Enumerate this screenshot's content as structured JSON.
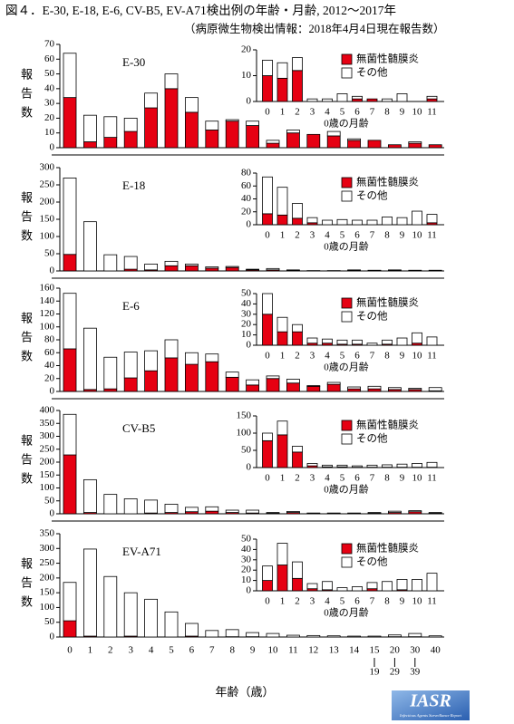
{
  "title": "図４．E-30, E-18, E-6, CV-B5, EV-A71検出例の年齢・月齢, 2012～2017年",
  "subtitle": "（病原微生物検出情報：2018年4月4日現在報告数）",
  "logo": {
    "text": "IASR",
    "caption": "Infectious Agents Surveillance Report"
  },
  "chart_data": [
    {
      "type": "bar",
      "stacked": true,
      "title": "E-30",
      "ylabel": "報告数",
      "ylim": [
        0,
        70
      ],
      "yticks": [
        0,
        10,
        20,
        30,
        40,
        50,
        60,
        70
      ],
      "series": [
        {
          "color": "#e60012",
          "values": [
            34,
            4,
            7,
            11,
            27,
            40,
            24,
            12,
            18,
            15,
            3,
            10,
            9,
            8,
            5,
            5,
            2,
            3,
            2
          ]
        },
        {
          "color": "#ffffff",
          "values": [
            30,
            18,
            14,
            9,
            10,
            10,
            10,
            6,
            1,
            3,
            2,
            2,
            0,
            3,
            1,
            0,
            0,
            1,
            0
          ]
        }
      ],
      "inset": {
        "type": "bar",
        "stacked": true,
        "xlabel": "0歳の月齢",
        "categories": [
          "0",
          "1",
          "2",
          "3",
          "4",
          "5",
          "6",
          "7",
          "8",
          "9",
          "10",
          "11"
        ],
        "ylim": [
          0,
          20
        ],
        "yticks": [
          0,
          10,
          20
        ],
        "legend": "top",
        "series": [
          {
            "name": "無菌性髄膜炎",
            "color": "#e60012",
            "values": [
              10,
              9,
              12,
              0,
              0,
              0,
              1,
              1,
              0,
              0,
              0,
              1
            ]
          },
          {
            "name": "その他",
            "color": "#ffffff",
            "values": [
              6,
              6,
              5,
              1,
              1,
              3,
              1,
              0,
              1,
              3,
              0,
              1
            ]
          }
        ]
      }
    },
    {
      "type": "bar",
      "stacked": true,
      "title": "E-18",
      "ylabel": "報告数",
      "ylim": [
        0,
        300
      ],
      "yticks": [
        0,
        50,
        100,
        150,
        200,
        250,
        300
      ],
      "series": [
        {
          "color": "#e60012",
          "values": [
            48,
            0,
            0,
            5,
            3,
            15,
            15,
            8,
            10,
            3,
            3,
            1,
            0,
            0,
            1,
            1,
            1,
            0,
            0
          ]
        },
        {
          "color": "#ffffff",
          "values": [
            222,
            143,
            47,
            37,
            17,
            13,
            5,
            4,
            3,
            2,
            4,
            2,
            1,
            1,
            2,
            1,
            2,
            2,
            2
          ]
        }
      ],
      "inset": {
        "type": "bar",
        "stacked": true,
        "xlabel": "0歳の月齢",
        "categories": [
          "0",
          "1",
          "2",
          "3",
          "4",
          "5",
          "6",
          "7",
          "8",
          "9",
          "10",
          "11"
        ],
        "ylim": [
          0,
          80
        ],
        "yticks": [
          0,
          20,
          40,
          60,
          80
        ],
        "legend": "top",
        "series": [
          {
            "name": "無菌性髄膜炎",
            "color": "#e60012",
            "values": [
              17,
              15,
              10,
              3,
              0,
              0,
              0,
              0,
              0,
              0,
              0,
              3
            ]
          },
          {
            "name": "その他",
            "color": "#ffffff",
            "values": [
              57,
              43,
              23,
              8,
              7,
              8,
              7,
              7,
              12,
              11,
              21,
              13
            ]
          }
        ]
      }
    },
    {
      "type": "bar",
      "stacked": true,
      "title": "E-6",
      "ylabel": "報告数",
      "ylim": [
        0,
        160
      ],
      "yticks": [
        0,
        20,
        40,
        60,
        80,
        100,
        120,
        140,
        160
      ],
      "series": [
        {
          "color": "#e60012",
          "values": [
            66,
            3,
            4,
            21,
            32,
            52,
            42,
            46,
            22,
            10,
            20,
            13,
            8,
            11,
            4,
            4,
            3,
            3,
            1
          ]
        },
        {
          "color": "#ffffff",
          "values": [
            86,
            95,
            49,
            40,
            31,
            28,
            18,
            12,
            8,
            8,
            4,
            6,
            1,
            3,
            3,
            4,
            3,
            2,
            5
          ]
        }
      ],
      "inset": {
        "type": "bar",
        "stacked": true,
        "xlabel": "0歳の月齢",
        "categories": [
          "0",
          "1",
          "2",
          "3",
          "4",
          "5",
          "6",
          "7",
          "8",
          "9",
          "10",
          "11"
        ],
        "ylim": [
          0,
          50
        ],
        "yticks": [
          0,
          10,
          20,
          30,
          40,
          50
        ],
        "legend": "top",
        "series": [
          {
            "name": "無菌性髄膜炎",
            "color": "#e60012",
            "values": [
              30,
              13,
              13,
              2,
              2,
              1,
              1,
              0,
              1,
              0,
              2,
              0
            ]
          },
          {
            "name": "その他",
            "color": "#ffffff",
            "values": [
              20,
              14,
              7,
              5,
              4,
              4,
              4,
              2,
              4,
              7,
              10,
              8
            ]
          }
        ]
      }
    },
    {
      "type": "bar",
      "stacked": true,
      "title": "CV-B5",
      "ylabel": "報告数",
      "ylim": [
        0,
        400
      ],
      "yticks": [
        0,
        50,
        100,
        150,
        200,
        250,
        300,
        350,
        400
      ],
      "series": [
        {
          "color": "#e60012",
          "values": [
            228,
            5,
            0,
            0,
            3,
            5,
            8,
            10,
            5,
            3,
            2,
            5,
            1,
            1,
            1,
            2,
            5,
            8,
            2
          ]
        },
        {
          "color": "#ffffff",
          "values": [
            157,
            127,
            75,
            58,
            50,
            32,
            17,
            17,
            9,
            11,
            3,
            4,
            2,
            2,
            2,
            3,
            5,
            4,
            3
          ]
        }
      ],
      "inset": {
        "type": "bar",
        "stacked": true,
        "xlabel": "0歳の月齢",
        "categories": [
          "0",
          "1",
          "2",
          "3",
          "4",
          "5",
          "6",
          "7",
          "8",
          "9",
          "10",
          "11"
        ],
        "ylim": [
          0,
          150
        ],
        "yticks": [
          0,
          50,
          100,
          150
        ],
        "legend": "top",
        "series": [
          {
            "name": "無菌性髄膜炎",
            "color": "#e60012",
            "values": [
              78,
              95,
              45,
              5,
              2,
              2,
              1,
              1,
              1,
              1,
              1,
              1
            ]
          },
          {
            "name": "その他",
            "color": "#ffffff",
            "values": [
              22,
              40,
              17,
              7,
              5,
              5,
              4,
              6,
              7,
              9,
              11,
              14
            ]
          }
        ]
      }
    },
    {
      "type": "bar",
      "stacked": true,
      "title": "EV-A71",
      "ylabel": "報告数",
      "ylim": [
        0,
        350
      ],
      "yticks": [
        0,
        50,
        100,
        150,
        200,
        250,
        300,
        350
      ],
      "xlabel": "年齢（歳）",
      "categories": [
        "0",
        "1",
        "2",
        "3",
        "4",
        "5",
        "6",
        "7",
        "8",
        "9",
        "10",
        "11",
        "12",
        "13",
        "14",
        "15",
        "20",
        "30",
        "40"
      ],
      "category_sublabels": [
        null,
        null,
        null,
        null,
        null,
        null,
        null,
        null,
        null,
        null,
        null,
        null,
        null,
        null,
        null,
        "19",
        "29",
        "39",
        null
      ],
      "series": [
        {
          "color": "#e60012",
          "values": [
            55,
            3,
            0,
            3,
            0,
            0,
            3,
            0,
            1,
            1,
            0,
            0,
            0,
            0,
            0,
            0,
            1,
            1,
            0
          ]
        },
        {
          "color": "#ffffff",
          "values": [
            130,
            295,
            205,
            147,
            128,
            85,
            43,
            22,
            24,
            14,
            12,
            6,
            5,
            4,
            3,
            3,
            6,
            11,
            4
          ]
        }
      ],
      "inset": {
        "type": "bar",
        "stacked": true,
        "xlabel": "0歳の月齢",
        "categories": [
          "0",
          "1",
          "2",
          "3",
          "4",
          "5",
          "6",
          "7",
          "8",
          "9",
          "10",
          "11"
        ],
        "ylim": [
          0,
          50
        ],
        "yticks": [
          0,
          10,
          20,
          30,
          40,
          50
        ],
        "legend": "top",
        "series": [
          {
            "name": "無菌性髄膜炎",
            "color": "#e60012",
            "values": [
              10,
              25,
              12,
              2,
              1,
              0,
              0,
              2,
              0,
              1,
              0,
              0
            ]
          },
          {
            "name": "その他",
            "color": "#ffffff",
            "values": [
              14,
              21,
              16,
              5,
              8,
              3,
              4,
              6,
              9,
              10,
              11,
              17
            ]
          }
        ]
      }
    }
  ]
}
